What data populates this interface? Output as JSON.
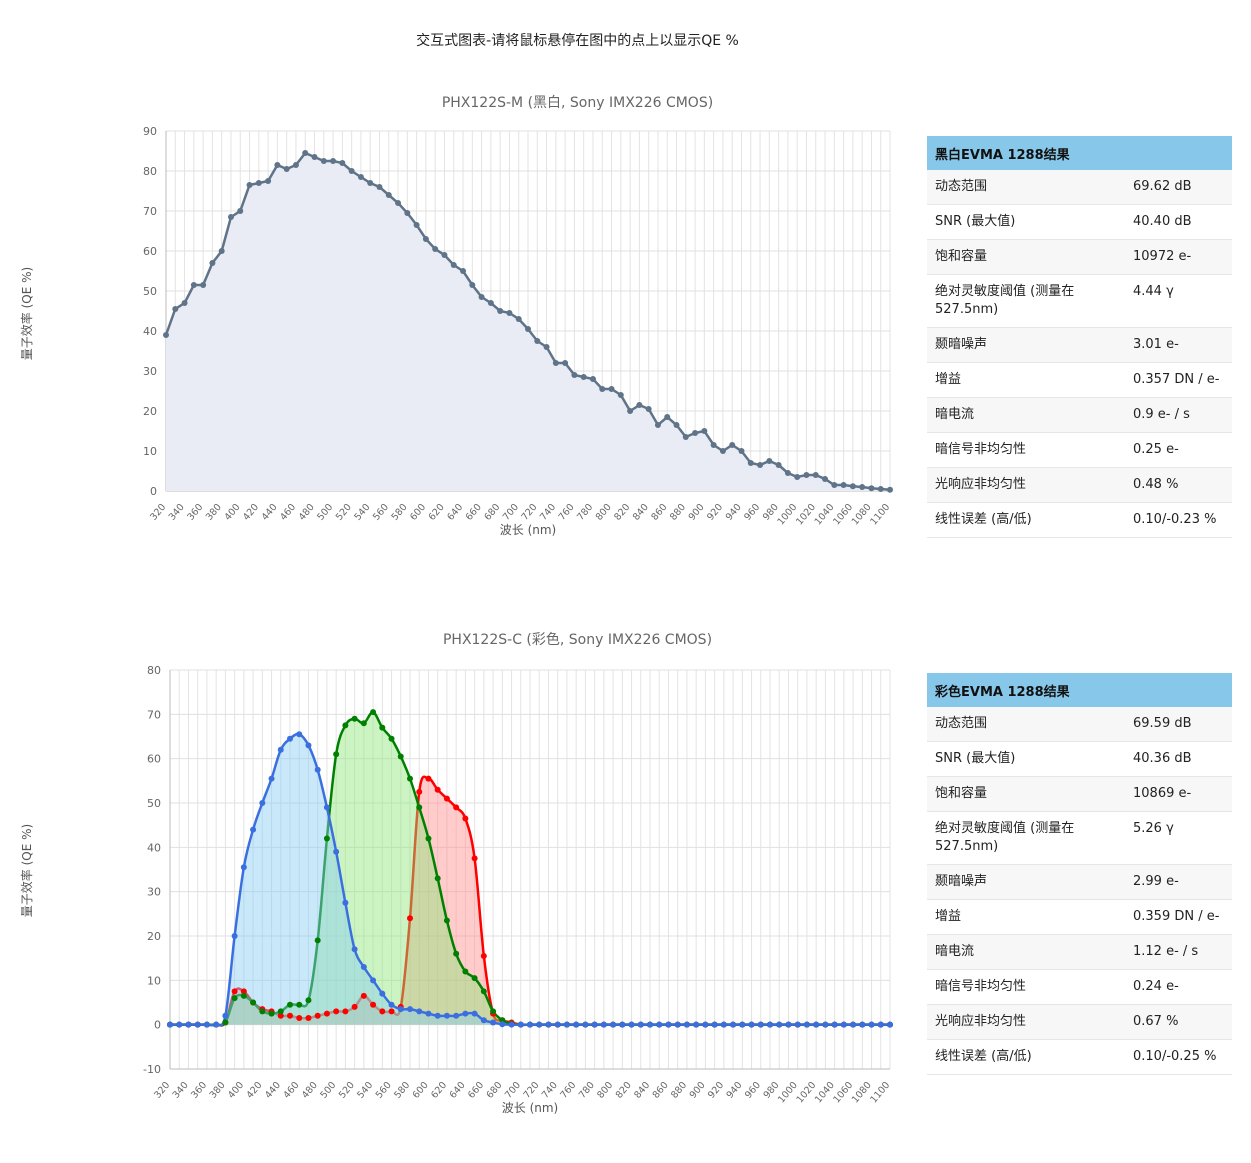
{
  "page_title": "交互式图表-请将鼠标悬停在图中的点上以显示QE %",
  "mono": {
    "title": "PHX122S-M (黑白, Sony IMX226 CMOS)",
    "ylabel": "量子效率 (QE %)",
    "xlabel": "波长 (nm)",
    "table": {
      "header": "黑白EVMA 1288结果",
      "rows": [
        {
          "k": "动态范围",
          "v": "69.62 dB"
        },
        {
          "k": "SNR (最大值)",
          "v": "40.40 dB"
        },
        {
          "k": "饱和容量",
          "v": "10972 e-"
        },
        {
          "k": "绝对灵敏度阈值 (测量在527.5nm)",
          "v": "4.44 γ"
        },
        {
          "k": "颞暗噪声",
          "v": "3.01 e-"
        },
        {
          "k": "增益",
          "v": "0.357 DN / e-"
        },
        {
          "k": "暗电流",
          "v": "0.9 e- / s"
        },
        {
          "k": "暗信号非均匀性",
          "v": "0.25 e-"
        },
        {
          "k": "光响应非均匀性",
          "v": "0.48 %"
        },
        {
          "k": "线性误差 (高/低)",
          "v": "0.10/-0.23 %"
        }
      ]
    }
  },
  "color": {
    "title": "PHX122S-C (彩色, Sony IMX226 CMOS)",
    "ylabel": "量子效率 (QE %)",
    "xlabel": "波长 (nm)",
    "table": {
      "header": "彩色EVMA 1288结果",
      "rows": [
        {
          "k": "动态范围",
          "v": "69.59 dB"
        },
        {
          "k": "SNR (最大值)",
          "v": "40.36 dB"
        },
        {
          "k": "饱和容量",
          "v": "10869 e-"
        },
        {
          "k": "绝对灵敏度阈值 (测量在527.5nm)",
          "v": "5.26 γ"
        },
        {
          "k": "颞暗噪声",
          "v": "2.99 e-"
        },
        {
          "k": "增益",
          "v": "0.359 DN / e-"
        },
        {
          "k": "暗电流",
          "v": "1.12 e- / s"
        },
        {
          "k": "暗信号非均匀性",
          "v": "0.24 e-"
        },
        {
          "k": "光响应非均匀性",
          "v": "0.67 %"
        },
        {
          "k": "线性误差 (高/低)",
          "v": "0.10/-0.25 %"
        }
      ]
    }
  },
  "chart_data": [
    {
      "type": "area",
      "title": "PHX122S-M (黑白, Sony IMX226 CMOS)",
      "xlabel": "波长 (nm)",
      "ylabel": "量子效率 (QE %)",
      "xlim": [
        320,
        1100
      ],
      "ylim": [
        0,
        90
      ],
      "yticks": [
        0,
        10,
        20,
        30,
        40,
        50,
        60,
        70,
        80,
        90
      ],
      "xticks": [
        320,
        340,
        360,
        380,
        400,
        420,
        440,
        460,
        480,
        500,
        520,
        540,
        560,
        580,
        600,
        620,
        640,
        660,
        680,
        700,
        720,
        740,
        760,
        780,
        800,
        820,
        840,
        860,
        880,
        900,
        920,
        940,
        960,
        980,
        1000,
        1020,
        1040,
        1060,
        1080,
        1100
      ],
      "grid": true,
      "colors": {
        "line": "#5f7389",
        "fill": "#e9ecf4"
      },
      "series": [
        {
          "x_start": 320,
          "x_step": 10,
          "values": [
            39,
            45.5,
            47,
            51.5,
            51.5,
            57,
            60,
            68.5,
            70,
            76.5,
            77,
            77.5,
            81.5,
            80.5,
            81.5,
            84.5,
            83.5,
            82.5,
            82.5,
            82,
            80,
            78.5,
            77,
            76,
            74,
            72,
            69.5,
            66.5,
            63,
            60.5,
            59,
            56.5,
            55,
            51.5,
            48.5,
            47,
            45,
            44.5,
            43,
            40.5,
            37.5,
            36,
            32,
            32,
            29,
            28.5,
            28,
            25.5,
            25.5,
            24,
            20,
            21.5,
            20.5,
            16.5,
            18.5,
            16.5,
            13.5,
            14.5,
            15,
            11.5,
            10,
            11.5,
            10,
            7,
            6.5,
            7.5,
            6.5,
            4.5,
            3.5,
            4,
            4,
            3,
            1.5,
            1.5,
            1.2,
            1,
            0.7,
            0.5,
            0.3
          ]
        }
      ]
    },
    {
      "type": "area",
      "title": "PHX122S-C (彩色, Sony IMX226 CMOS)",
      "xlabel": "波长 (nm)",
      "ylabel": "量子效率 (QE %)",
      "xlim": [
        320,
        1100
      ],
      "ylim": [
        -10,
        80
      ],
      "yticks": [
        -10,
        0,
        10,
        20,
        30,
        40,
        50,
        60,
        70,
        80
      ],
      "xticks": [
        320,
        340,
        360,
        380,
        400,
        420,
        440,
        460,
        480,
        500,
        520,
        540,
        560,
        580,
        600,
        620,
        640,
        660,
        680,
        700,
        720,
        740,
        760,
        780,
        800,
        820,
        840,
        860,
        880,
        900,
        920,
        940,
        960,
        980,
        1000,
        1020,
        1040,
        1060,
        1080,
        1100
      ],
      "grid": true,
      "series": [
        {
          "name": "red",
          "color": "#ff0000",
          "fill": "rgba(255,140,140,0.45)",
          "x_start": 320,
          "x_step": 10,
          "values": [
            0,
            0,
            0,
            0,
            0,
            0,
            0.5,
            7.5,
            7.5,
            5,
            3.5,
            3,
            2,
            2,
            1.5,
            1.5,
            2,
            2.5,
            3,
            3,
            4,
            6.5,
            4.5,
            3,
            3,
            4,
            24,
            52.5,
            55.5,
            53,
            51,
            49,
            46.5,
            37.5,
            15.5,
            2.5,
            1,
            0.5,
            0,
            0,
            0,
            0,
            0,
            0,
            0,
            0,
            0,
            0,
            0,
            0,
            0,
            0,
            0,
            0,
            0,
            0,
            0,
            0,
            0,
            0,
            0,
            0,
            0,
            0,
            0,
            0,
            0,
            0,
            0,
            0,
            0,
            0,
            0,
            0,
            0,
            0,
            0,
            0,
            0
          ]
        },
        {
          "name": "green",
          "color": "#008000",
          "fill": "rgba(140,230,120,0.45)",
          "x_start": 320,
          "x_step": 10,
          "values": [
            0,
            0,
            0,
            0,
            0,
            0,
            0.5,
            6,
            6.5,
            5,
            3,
            2.5,
            3,
            4.5,
            4.5,
            5.5,
            19,
            42,
            61,
            67.5,
            69,
            68,
            70.5,
            67,
            64.5,
            60.5,
            55.5,
            49,
            42,
            33,
            23.5,
            16,
            12,
            10.5,
            7.5,
            3,
            1,
            0.2,
            0,
            0,
            0,
            0,
            0,
            0,
            0,
            0,
            0,
            0,
            0,
            0,
            0,
            0,
            0,
            0,
            0,
            0,
            0,
            0,
            0,
            0,
            0,
            0,
            0,
            0,
            0,
            0,
            0,
            0,
            0,
            0,
            0,
            0,
            0,
            0,
            0,
            0,
            0,
            0,
            0
          ]
        },
        {
          "name": "blue",
          "color": "#3b6fe0",
          "fill": "rgba(135,205,245,0.45)",
          "x_start": 320,
          "x_step": 10,
          "values": [
            0,
            0,
            0,
            0,
            0,
            0,
            2,
            20,
            35.5,
            44,
            50,
            55.5,
            62,
            64.5,
            65.5,
            63,
            57.5,
            49,
            39,
            27.5,
            17,
            13,
            10,
            7,
            4.5,
            3.5,
            3.5,
            3,
            2.5,
            2,
            2,
            2,
            2.5,
            2.5,
            1,
            0.5,
            0.1,
            0,
            0,
            0,
            0,
            0,
            0,
            0,
            0,
            0,
            0,
            0,
            0,
            0,
            0,
            0,
            0,
            0,
            0,
            0,
            0,
            0,
            0,
            0,
            0,
            0,
            0,
            0,
            0,
            0,
            0,
            0,
            0,
            0,
            0,
            0,
            0,
            0,
            0,
            0,
            0,
            0,
            0
          ]
        }
      ]
    }
  ]
}
